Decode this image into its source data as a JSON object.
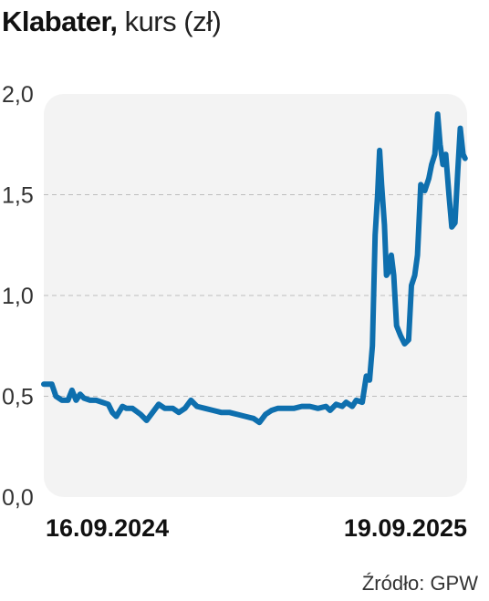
{
  "title": {
    "main": "Klabater,",
    "sub": " kurs (zł)"
  },
  "source": "Źródło: GPW",
  "chart_data": {
    "type": "line",
    "title": "Klabater, kurs (zł)",
    "xlabel": "",
    "ylabel": "",
    "ylim": [
      0,
      2.0
    ],
    "yticks": [
      {
        "value": 0.0,
        "label": "0,0"
      },
      {
        "value": 0.5,
        "label": "0,5"
      },
      {
        "value": 1.0,
        "label": "1,0"
      },
      {
        "value": 1.5,
        "label": "1,5"
      },
      {
        "value": 2.0,
        "label": "2,0"
      }
    ],
    "xticks": [
      {
        "value": 0.0,
        "label": "16.09.2024"
      },
      {
        "value": 1.0,
        "label": "19.09.2025"
      }
    ],
    "grid": true,
    "line_color": "#0e6fae",
    "background": "#f3f3f3",
    "series": [
      {
        "values": [
          [
            0.0,
            0.56
          ],
          [
            0.02,
            0.56
          ],
          [
            0.03,
            0.5
          ],
          [
            0.045,
            0.48
          ],
          [
            0.06,
            0.48
          ],
          [
            0.07,
            0.53
          ],
          [
            0.08,
            0.48
          ],
          [
            0.09,
            0.51
          ],
          [
            0.1,
            0.49
          ],
          [
            0.115,
            0.48
          ],
          [
            0.13,
            0.48
          ],
          [
            0.145,
            0.47
          ],
          [
            0.16,
            0.46
          ],
          [
            0.17,
            0.42
          ],
          [
            0.18,
            0.4
          ],
          [
            0.195,
            0.45
          ],
          [
            0.205,
            0.44
          ],
          [
            0.22,
            0.44
          ],
          [
            0.24,
            0.41
          ],
          [
            0.255,
            0.38
          ],
          [
            0.27,
            0.42
          ],
          [
            0.285,
            0.46
          ],
          [
            0.3,
            0.44
          ],
          [
            0.32,
            0.44
          ],
          [
            0.335,
            0.42
          ],
          [
            0.35,
            0.44
          ],
          [
            0.365,
            0.48
          ],
          [
            0.38,
            0.45
          ],
          [
            0.4,
            0.44
          ],
          [
            0.42,
            0.43
          ],
          [
            0.44,
            0.42
          ],
          [
            0.46,
            0.42
          ],
          [
            0.48,
            0.41
          ],
          [
            0.5,
            0.4
          ],
          [
            0.52,
            0.39
          ],
          [
            0.535,
            0.37
          ],
          [
            0.55,
            0.41
          ],
          [
            0.565,
            0.43
          ],
          [
            0.58,
            0.44
          ],
          [
            0.6,
            0.44
          ],
          [
            0.62,
            0.44
          ],
          [
            0.64,
            0.45
          ],
          [
            0.66,
            0.45
          ],
          [
            0.68,
            0.44
          ],
          [
            0.7,
            0.45
          ],
          [
            0.71,
            0.43
          ],
          [
            0.725,
            0.46
          ],
          [
            0.74,
            0.45
          ],
          [
            0.75,
            0.47
          ],
          [
            0.765,
            0.45
          ],
          [
            0.775,
            0.48
          ],
          [
            0.79,
            0.47
          ],
          [
            0.8,
            0.6
          ],
          [
            0.808,
            0.58
          ],
          [
            0.815,
            0.75
          ],
          [
            0.822,
            1.3
          ],
          [
            0.828,
            1.5
          ],
          [
            0.833,
            1.72
          ],
          [
            0.838,
            1.55
          ],
          [
            0.845,
            1.35
          ],
          [
            0.85,
            1.1
          ],
          [
            0.856,
            1.12
          ],
          [
            0.862,
            1.2
          ],
          [
            0.868,
            1.1
          ],
          [
            0.875,
            0.85
          ],
          [
            0.885,
            0.8
          ],
          [
            0.895,
            0.76
          ],
          [
            0.905,
            0.78
          ],
          [
            0.912,
            1.05
          ],
          [
            0.92,
            1.1
          ],
          [
            0.927,
            1.2
          ],
          [
            0.935,
            1.55
          ],
          [
            0.945,
            1.52
          ],
          [
            0.955,
            1.58
          ],
          [
            0.962,
            1.65
          ],
          [
            0.97,
            1.7
          ],
          [
            0.977,
            1.9
          ],
          [
            0.983,
            1.75
          ],
          [
            0.99,
            1.65
          ],
          [
            0.997,
            1.7
          ],
          [
            1.005,
            1.5
          ],
          [
            1.012,
            1.34
          ],
          [
            1.02,
            1.36
          ],
          [
            1.027,
            1.62
          ],
          [
            1.033,
            1.83
          ],
          [
            1.04,
            1.7
          ],
          [
            1.045,
            1.68
          ]
        ]
      }
    ]
  }
}
